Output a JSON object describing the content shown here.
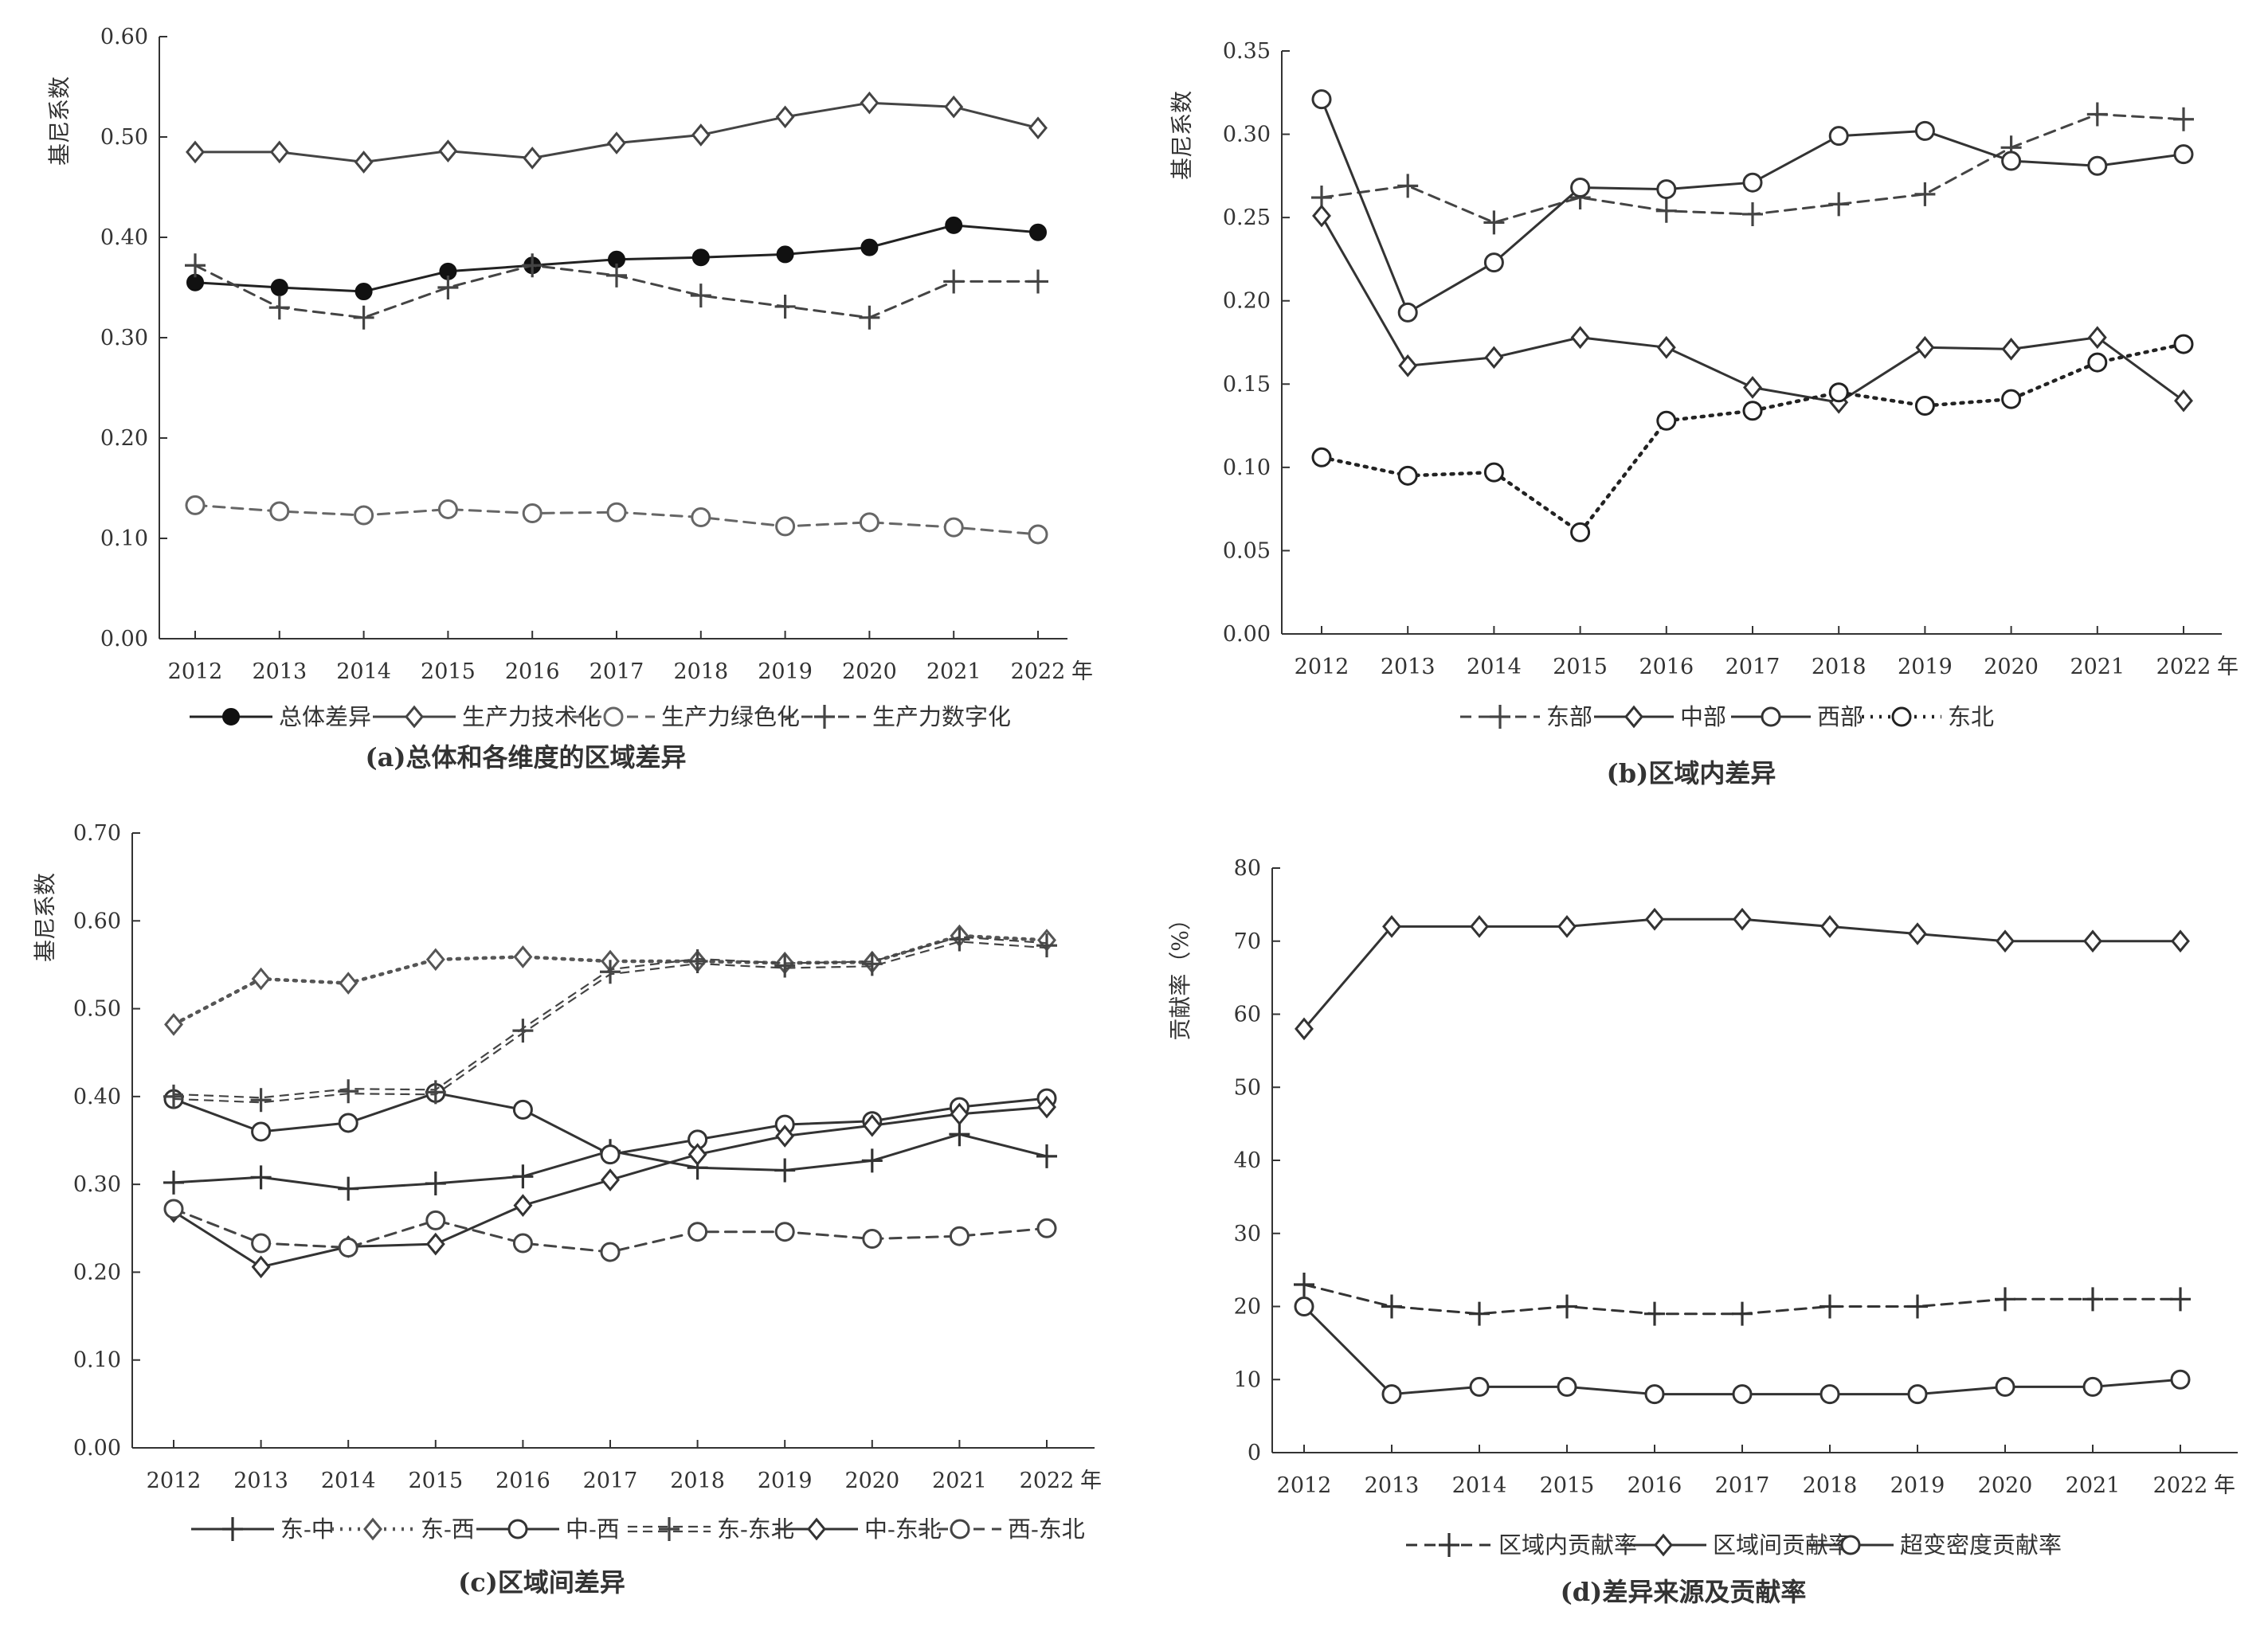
{
  "chart_data": [
    {
      "id": "a",
      "type": "line",
      "caption": "(a)总体和各维度的区域差异",
      "ylabel": "基尼系数",
      "x_unit": "年",
      "x": [
        "2012",
        "2013",
        "2014",
        "2015",
        "2016",
        "2017",
        "2018",
        "2019",
        "2020",
        "2021",
        "2022"
      ],
      "ylim": [
        0,
        0.6
      ],
      "yticks": [
        "0.00",
        "0.10",
        "0.20",
        "0.30",
        "0.40",
        "0.50",
        "0.60"
      ],
      "legend_position": "bottom",
      "series": [
        {
          "name": "总体差异",
          "marker": "filled-circle",
          "dash": "solid",
          "color": "#222222",
          "values": [
            0.355,
            0.35,
            0.346,
            0.366,
            0.372,
            0.378,
            0.38,
            0.383,
            0.39,
            0.412,
            0.405
          ]
        },
        {
          "name": "生产力技术化",
          "marker": "diamond",
          "dash": "solid",
          "color": "#444444",
          "values": [
            0.485,
            0.485,
            0.475,
            0.486,
            0.479,
            0.494,
            0.502,
            0.52,
            0.534,
            0.53,
            0.509
          ]
        },
        {
          "name": "生产力绿色化",
          "marker": "circle",
          "dash": "dashed",
          "color": "#666666",
          "values": [
            0.133,
            0.127,
            0.123,
            0.129,
            0.125,
            0.126,
            0.121,
            0.112,
            0.116,
            0.111,
            0.104
          ]
        },
        {
          "name": "生产力数字化",
          "marker": "plus",
          "dash": "dashed",
          "color": "#444444",
          "values": [
            0.372,
            0.33,
            0.32,
            0.35,
            0.372,
            0.362,
            0.342,
            0.331,
            0.32,
            0.356,
            0.356
          ]
        }
      ]
    },
    {
      "id": "b",
      "type": "line",
      "caption": "(b)区域内差异",
      "ylabel": "基尼系数",
      "x_unit": "年",
      "x": [
        "2012",
        "2013",
        "2014",
        "2015",
        "2016",
        "2017",
        "2018",
        "2019",
        "2020",
        "2021",
        "2022"
      ],
      "ylim": [
        0,
        0.35
      ],
      "yticks": [
        "0.00",
        "0.05",
        "0.10",
        "0.15",
        "0.20",
        "0.25",
        "0.30",
        "0.35"
      ],
      "legend_position": "bottom",
      "series": [
        {
          "name": "东部",
          "marker": "plus",
          "dash": "dashed",
          "color": "#444444",
          "values": [
            0.262,
            0.269,
            0.247,
            0.262,
            0.254,
            0.252,
            0.258,
            0.264,
            0.292,
            0.312,
            0.309
          ]
        },
        {
          "name": "中部",
          "marker": "diamond",
          "dash": "solid",
          "color": "#333333",
          "values": [
            0.251,
            0.161,
            0.166,
            0.178,
            0.172,
            0.148,
            0.139,
            0.172,
            0.171,
            0.178,
            0.14
          ]
        },
        {
          "name": "西部",
          "marker": "circle",
          "dash": "solid",
          "color": "#333333",
          "values": [
            0.321,
            0.193,
            0.223,
            0.268,
            0.267,
            0.271,
            0.299,
            0.302,
            0.284,
            0.281,
            0.288
          ]
        },
        {
          "name": "东北",
          "marker": "circle",
          "dash": "dotted",
          "color": "#222222",
          "values": [
            0.106,
            0.095,
            0.097,
            0.061,
            0.128,
            0.134,
            0.145,
            0.137,
            0.141,
            0.163,
            0.174
          ]
        }
      ]
    },
    {
      "id": "c",
      "type": "line",
      "caption": "(c)区域间差异",
      "ylabel": "基尼系数",
      "x_unit": "年",
      "x": [
        "2012",
        "2013",
        "2014",
        "2015",
        "2016",
        "2017",
        "2018",
        "2019",
        "2020",
        "2021",
        "2022"
      ],
      "ylim": [
        0,
        0.7
      ],
      "yticks": [
        "0.00",
        "0.10",
        "0.20",
        "0.30",
        "0.40",
        "0.50",
        "0.60",
        "0.70"
      ],
      "legend_position": "bottom",
      "series": [
        {
          "name": "东-中",
          "marker": "plus",
          "dash": "solid",
          "color": "#333333",
          "values": [
            0.302,
            0.308,
            0.295,
            0.301,
            0.309,
            0.338,
            0.319,
            0.316,
            0.327,
            0.357,
            0.332
          ]
        },
        {
          "name": "东-西",
          "marker": "diamond",
          "dash": "dotted",
          "color": "#555555",
          "values": [
            0.482,
            0.534,
            0.529,
            0.556,
            0.559,
            0.554,
            0.554,
            0.552,
            0.553,
            0.583,
            0.578
          ]
        },
        {
          "name": "中-西",
          "marker": "circle",
          "dash": "solid",
          "color": "#333333",
          "values": [
            0.397,
            0.36,
            0.37,
            0.404,
            0.385,
            0.334,
            0.351,
            0.368,
            0.372,
            0.388,
            0.398
          ]
        },
        {
          "name": "东-东北",
          "marker": "plus",
          "dash": "double-dashed",
          "color": "#444444",
          "values": [
            0.4,
            0.396,
            0.406,
            0.405,
            0.475,
            0.542,
            0.554,
            0.549,
            0.551,
            0.579,
            0.572
          ]
        },
        {
          "name": "中-东北",
          "marker": "diamond",
          "dash": "solid",
          "color": "#333333",
          "values": [
            0.269,
            0.206,
            0.229,
            0.232,
            0.276,
            0.305,
            0.334,
            0.355,
            0.367,
            0.38,
            0.388
          ]
        },
        {
          "name": "西-东北",
          "marker": "circle",
          "dash": "dashed",
          "color": "#444444",
          "values": [
            0.272,
            0.233,
            0.228,
            0.259,
            0.233,
            0.223,
            0.246,
            0.246,
            0.238,
            0.241,
            0.25
          ]
        }
      ]
    },
    {
      "id": "d",
      "type": "line",
      "caption": "(d)差异来源及贡献率",
      "ylabel": "贡献率（%）",
      "x_unit": "年",
      "x": [
        "2012",
        "2013",
        "2014",
        "2015",
        "2016",
        "2017",
        "2018",
        "2019",
        "2020",
        "2021",
        "2022"
      ],
      "ylim": [
        0,
        80
      ],
      "yticks": [
        "0",
        "10",
        "20",
        "30",
        "40",
        "50",
        "60",
        "70",
        "80"
      ],
      "legend_position": "bottom",
      "series": [
        {
          "name": "区域内贡献率",
          "marker": "plus",
          "dash": "dashed",
          "color": "#333333",
          "values": [
            23,
            20,
            19,
            20,
            19,
            19,
            20,
            20,
            21,
            21,
            21
          ]
        },
        {
          "name": "区域间贡献率",
          "marker": "diamond",
          "dash": "solid",
          "color": "#333333",
          "values": [
            58,
            72,
            72,
            72,
            73,
            73,
            72,
            71,
            70,
            70,
            70
          ]
        },
        {
          "name": "超变密度贡献率",
          "marker": "circle",
          "dash": "solid",
          "color": "#333333",
          "values": [
            20,
            8,
            9,
            9,
            8,
            8,
            8,
            8,
            9,
            9,
            10
          ]
        }
      ]
    }
  ]
}
